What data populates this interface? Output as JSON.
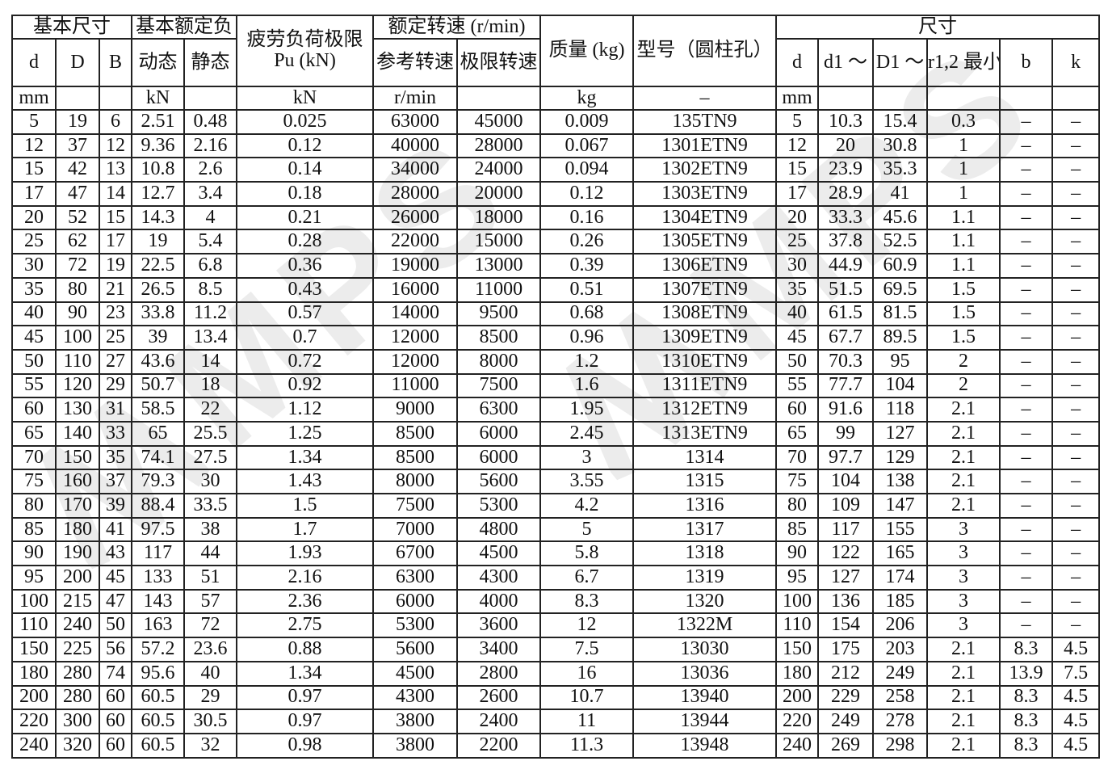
{
  "watermark": {
    "text": "MPS"
  },
  "colors": {
    "border": "#222222",
    "text": "#111111",
    "watermark": "#ececec",
    "background": "#ffffff"
  },
  "table": {
    "column_keys": [
      "d",
      "D",
      "B",
      "dynamic",
      "static",
      "pu",
      "ref_speed",
      "limit_speed",
      "mass",
      "model",
      "d_dim",
      "d1",
      "D1",
      "r12_min",
      "b",
      "k"
    ],
    "header": {
      "groups": {
        "basic_dimensions": "基本尺寸",
        "basic_rated_load": "基本额定负",
        "fatigue_limit_line1": "疲劳负荷极限",
        "fatigue_limit_line2": "Pu (kN)",
        "rated_speed": "额定转速 (r/min)",
        "mass": "质量 (kg)",
        "model": "型号（圆柱孔）",
        "dimensions": "尺寸"
      },
      "columns": {
        "d": "d",
        "D": "D",
        "B": "B",
        "dynamic": "动态",
        "static": "静态",
        "ref_speed": "参考转速",
        "limit_speed": "极限转速",
        "d_dim": "d",
        "d1": "d1 ～",
        "D1": "D1 ～",
        "r12_min": "r1,2 最小",
        "b": "b",
        "k": "k"
      },
      "units": [
        "mm",
        "",
        "",
        "kN",
        "",
        "kN",
        "r/min",
        "",
        "kg",
        "–",
        "mm",
        "",
        "",
        "",
        "",
        ""
      ]
    },
    "rows": [
      [
        "5",
        "19",
        "6",
        "2.51",
        "0.48",
        "0.025",
        "63000",
        "45000",
        "0.009",
        "135TN9",
        "5",
        "10.3",
        "15.4",
        "0.3",
        "–",
        "–"
      ],
      [
        "12",
        "37",
        "12",
        "9.36",
        "2.16",
        "0.12",
        "40000",
        "28000",
        "0.067",
        "1301ETN9",
        "12",
        "20",
        "30.8",
        "1",
        "–",
        "–"
      ],
      [
        "15",
        "42",
        "13",
        "10.8",
        "2.6",
        "0.14",
        "34000",
        "24000",
        "0.094",
        "1302ETN9",
        "15",
        "23.9",
        "35.3",
        "1",
        "–",
        "–"
      ],
      [
        "17",
        "47",
        "14",
        "12.7",
        "3.4",
        "0.18",
        "28000",
        "20000",
        "0.12",
        "1303ETN9",
        "17",
        "28.9",
        "41",
        "1",
        "–",
        "–"
      ],
      [
        "20",
        "52",
        "15",
        "14.3",
        "4",
        "0.21",
        "26000",
        "18000",
        "0.16",
        "1304ETN9",
        "20",
        "33.3",
        "45.6",
        "1.1",
        "–",
        "–"
      ],
      [
        "25",
        "62",
        "17",
        "19",
        "5.4",
        "0.28",
        "22000",
        "15000",
        "0.26",
        "1305ETN9",
        "25",
        "37.8",
        "52.5",
        "1.1",
        "–",
        "–"
      ],
      [
        "30",
        "72",
        "19",
        "22.5",
        "6.8",
        "0.36",
        "19000",
        "13000",
        "0.39",
        "1306ETN9",
        "30",
        "44.9",
        "60.9",
        "1.1",
        "–",
        "–"
      ],
      [
        "35",
        "80",
        "21",
        "26.5",
        "8.5",
        "0.43",
        "16000",
        "11000",
        "0.51",
        "1307ETN9",
        "35",
        "51.5",
        "69.5",
        "1.5",
        "–",
        "–"
      ],
      [
        "40",
        "90",
        "23",
        "33.8",
        "11.2",
        "0.57",
        "14000",
        "9500",
        "0.68",
        "1308ETN9",
        "40",
        "61.5",
        "81.5",
        "1.5",
        "–",
        "–"
      ],
      [
        "45",
        "100",
        "25",
        "39",
        "13.4",
        "0.7",
        "12000",
        "8500",
        "0.96",
        "1309ETN9",
        "45",
        "67.7",
        "89.5",
        "1.5",
        "–",
        "–"
      ],
      [
        "50",
        "110",
        "27",
        "43.6",
        "14",
        "0.72",
        "12000",
        "8000",
        "1.2",
        "1310ETN9",
        "50",
        "70.3",
        "95",
        "2",
        "–",
        "–"
      ],
      [
        "55",
        "120",
        "29",
        "50.7",
        "18",
        "0.92",
        "11000",
        "7500",
        "1.6",
        "1311ETN9",
        "55",
        "77.7",
        "104",
        "2",
        "–",
        "–"
      ],
      [
        "60",
        "130",
        "31",
        "58.5",
        "22",
        "1.12",
        "9000",
        "6300",
        "1.95",
        "1312ETN9",
        "60",
        "91.6",
        "118",
        "2.1",
        "–",
        "–"
      ],
      [
        "65",
        "140",
        "33",
        "65",
        "25.5",
        "1.25",
        "8500",
        "6000",
        "2.45",
        "1313ETN9",
        "65",
        "99",
        "127",
        "2.1",
        "–",
        "–"
      ],
      [
        "70",
        "150",
        "35",
        "74.1",
        "27.5",
        "1.34",
        "8500",
        "6000",
        "3",
        "1314",
        "70",
        "97.7",
        "129",
        "2.1",
        "–",
        "–"
      ],
      [
        "75",
        "160",
        "37",
        "79.3",
        "30",
        "1.43",
        "8000",
        "5600",
        "3.55",
        "1315",
        "75",
        "104",
        "138",
        "2.1",
        "–",
        "–"
      ],
      [
        "80",
        "170",
        "39",
        "88.4",
        "33.5",
        "1.5",
        "7500",
        "5300",
        "4.2",
        "1316",
        "80",
        "109",
        "147",
        "2.1",
        "–",
        "–"
      ],
      [
        "85",
        "180",
        "41",
        "97.5",
        "38",
        "1.7",
        "7000",
        "4800",
        "5",
        "1317",
        "85",
        "117",
        "155",
        "3",
        "–",
        "–"
      ],
      [
        "90",
        "190",
        "43",
        "117",
        "44",
        "1.93",
        "6700",
        "4500",
        "5.8",
        "1318",
        "90",
        "122",
        "165",
        "3",
        "–",
        "–"
      ],
      [
        "95",
        "200",
        "45",
        "133",
        "51",
        "2.16",
        "6300",
        "4300",
        "6.7",
        "1319",
        "95",
        "127",
        "174",
        "3",
        "–",
        "–"
      ],
      [
        "100",
        "215",
        "47",
        "143",
        "57",
        "2.36",
        "6000",
        "4000",
        "8.3",
        "1320",
        "100",
        "136",
        "185",
        "3",
        "–",
        "–"
      ],
      [
        "110",
        "240",
        "50",
        "163",
        "72",
        "2.75",
        "5300",
        "3600",
        "12",
        "1322M",
        "110",
        "154",
        "206",
        "3",
        "–",
        "–"
      ],
      [
        "150",
        "225",
        "56",
        "57.2",
        "23.6",
        "0.88",
        "5600",
        "3400",
        "7.5",
        "13030",
        "150",
        "175",
        "203",
        "2.1",
        "8.3",
        "4.5"
      ],
      [
        "180",
        "280",
        "74",
        "95.6",
        "40",
        "1.34",
        "4500",
        "2800",
        "16",
        "13036",
        "180",
        "212",
        "249",
        "2.1",
        "13.9",
        "7.5"
      ],
      [
        "200",
        "280",
        "60",
        "60.5",
        "29",
        "0.97",
        "4300",
        "2600",
        "10.7",
        "13940",
        "200",
        "229",
        "258",
        "2.1",
        "8.3",
        "4.5"
      ],
      [
        "220",
        "300",
        "60",
        "60.5",
        "30.5",
        "0.97",
        "3800",
        "2400",
        "11",
        "13944",
        "220",
        "249",
        "278",
        "2.1",
        "8.3",
        "4.5"
      ],
      [
        "240",
        "320",
        "60",
        "60.5",
        "32",
        "0.98",
        "3800",
        "2200",
        "11.3",
        "13948",
        "240",
        "269",
        "298",
        "2.1",
        "8.3",
        "4.5"
      ]
    ]
  }
}
